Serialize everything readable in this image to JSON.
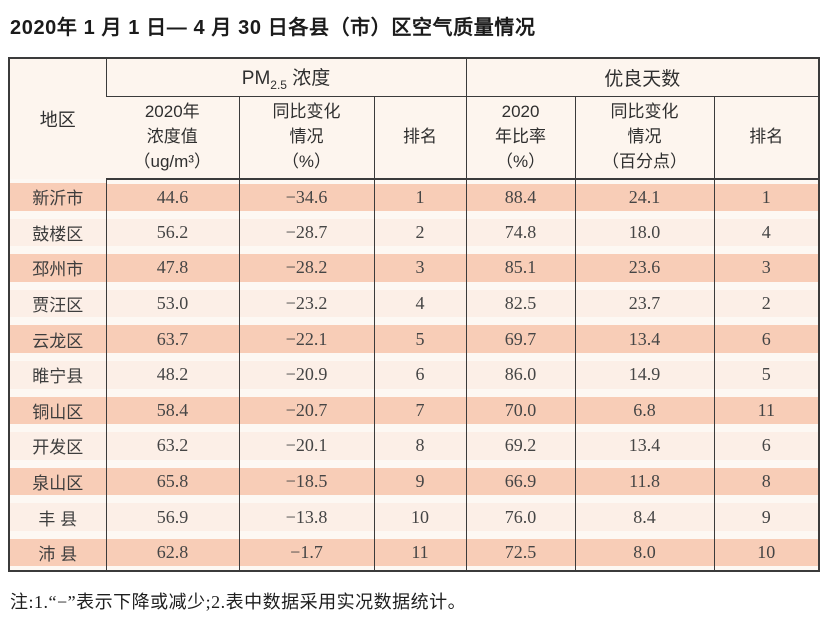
{
  "title": "2020年 1 月 1 日— 4 月 30 日各县（市）区空气质量情况",
  "table": {
    "region_header": "地区",
    "pm_group": {
      "prefix": "PM",
      "sub": "2.5",
      "suffix": " 浓度"
    },
    "good_group": "优良天数",
    "subheaders": [
      "2020年\n浓度值\n（ug/m³）",
      "同比变化\n情况\n（%）",
      "排名",
      "2020\n年比率\n（%）",
      "同比变化\n情况\n（百分点）",
      "排名"
    ],
    "rows": [
      {
        "region": "新沂市",
        "pm_value": "44.6",
        "pm_change": "−34.6",
        "pm_rank": "1",
        "good_ratio": "88.4",
        "good_change": "24.1",
        "good_rank": "1"
      },
      {
        "region": "鼓楼区",
        "pm_value": "56.2",
        "pm_change": "−28.7",
        "pm_rank": "2",
        "good_ratio": "74.8",
        "good_change": "18.0",
        "good_rank": "4"
      },
      {
        "region": "邳州市",
        "pm_value": "47.8",
        "pm_change": "−28.2",
        "pm_rank": "3",
        "good_ratio": "85.1",
        "good_change": "23.6",
        "good_rank": "3"
      },
      {
        "region": "贾汪区",
        "pm_value": "53.0",
        "pm_change": "−23.2",
        "pm_rank": "4",
        "good_ratio": "82.5",
        "good_change": "23.7",
        "good_rank": "2"
      },
      {
        "region": "云龙区",
        "pm_value": "63.7",
        "pm_change": "−22.1",
        "pm_rank": "5",
        "good_ratio": "69.7",
        "good_change": "13.4",
        "good_rank": "6"
      },
      {
        "region": "睢宁县",
        "pm_value": "48.2",
        "pm_change": "−20.9",
        "pm_rank": "6",
        "good_ratio": "86.0",
        "good_change": "14.9",
        "good_rank": "5"
      },
      {
        "region": "铜山区",
        "pm_value": "58.4",
        "pm_change": "−20.7",
        "pm_rank": "7",
        "good_ratio": "70.0",
        "good_change": "6.8",
        "good_rank": "11"
      },
      {
        "region": "开发区",
        "pm_value": "63.2",
        "pm_change": "−20.1",
        "pm_rank": "8",
        "good_ratio": "69.2",
        "good_change": "13.4",
        "good_rank": "6"
      },
      {
        "region": "泉山区",
        "pm_value": "65.8",
        "pm_change": "−18.5",
        "pm_rank": "9",
        "good_ratio": "66.9",
        "good_change": "11.8",
        "good_rank": "8"
      },
      {
        "region": "丰 县",
        "pm_value": "56.9",
        "pm_change": "−13.8",
        "pm_rank": "10",
        "good_ratio": "76.0",
        "good_change": "8.4",
        "good_rank": "9"
      },
      {
        "region": "沛 县",
        "pm_value": "62.8",
        "pm_change": "−1.7",
        "pm_rank": "11",
        "good_ratio": "72.5",
        "good_change": "8.0",
        "good_rank": "10"
      }
    ]
  },
  "note": "注:1.“−”表示下降或减少;2.表中数据采用实况数据统计。",
  "colors": {
    "row_band_odd": "#f8cdb7",
    "row_band_even": "#fcefe7",
    "row_gap": "#fdf8f3",
    "header_bg": "#fdf5ee",
    "table_border": "#3b3b3b",
    "text": "#3a3a3a"
  }
}
